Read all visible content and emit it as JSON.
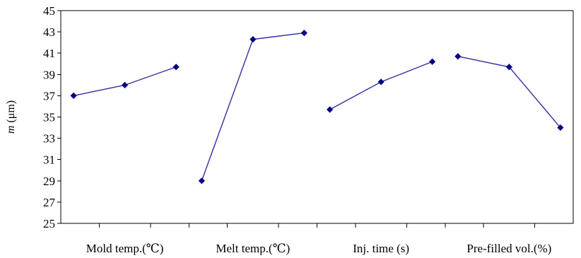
{
  "chart_data": {
    "type": "line",
    "ylabel_var": "m",
    "ylabel_unit": " (μm)",
    "xlabel": "",
    "title": "",
    "ylim": [
      25,
      45
    ],
    "yticks": [
      25,
      27,
      29,
      31,
      33,
      35,
      37,
      39,
      41,
      43,
      45
    ],
    "grid": false,
    "groups": [
      {
        "label": "Mold temp.(℃)",
        "values": [
          37.0,
          38.0,
          39.7
        ]
      },
      {
        "label": "Melt temp.(℃)",
        "values": [
          29.0,
          42.3,
          42.9
        ]
      },
      {
        "label": "Inj.  time (s)",
        "values": [
          35.7,
          38.3,
          40.2
        ]
      },
      {
        "label": "Pre-filled vol.(%)",
        "values": [
          40.7,
          39.7,
          34.0
        ]
      }
    ],
    "colors": {
      "line": "#3030a0",
      "marker": "#000080"
    }
  }
}
